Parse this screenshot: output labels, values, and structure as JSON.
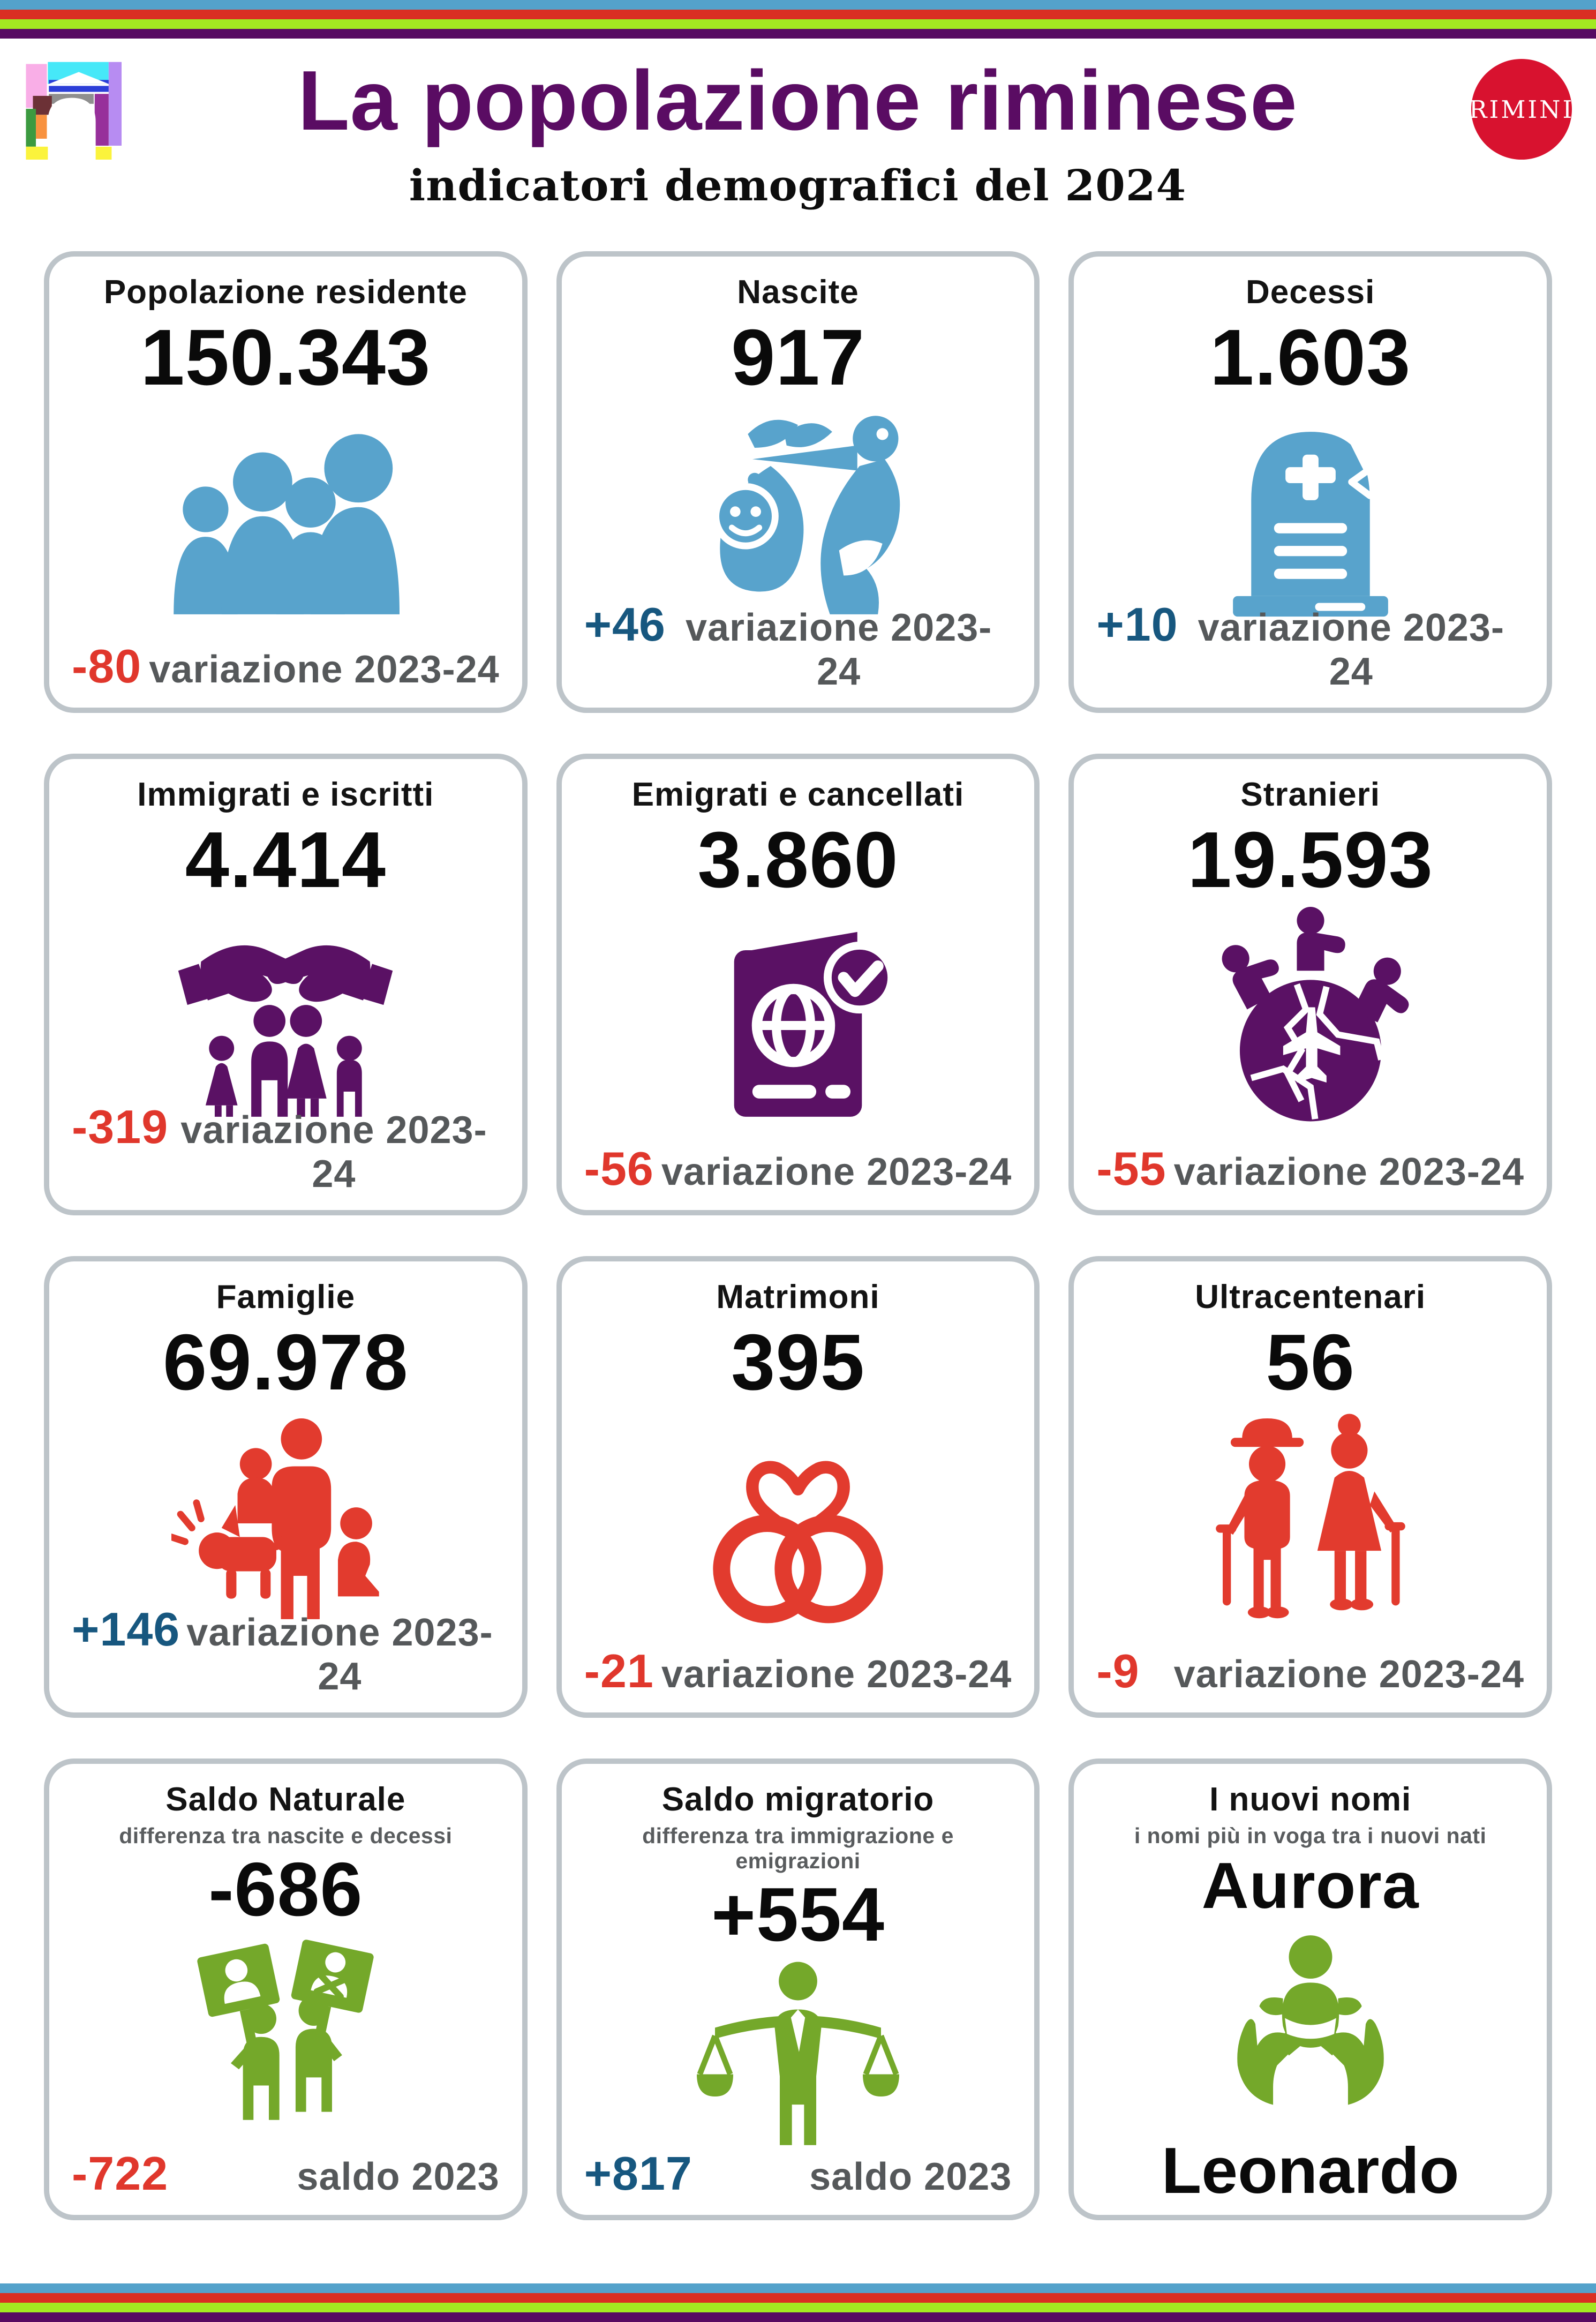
{
  "palette": {
    "stripes": [
      "#54A2CB",
      "#DA2F23",
      "#A3E921",
      "#570A62"
    ],
    "title_purple": "#5A0C63",
    "badge_red": "#D8122F",
    "card_border": "#BDC4C9",
    "label_gray": "#55585A",
    "negative": "#E0372C",
    "positive": "#17577F",
    "blue": "#58A3CC",
    "purple": "#5A1164",
    "red": "#E23B2E",
    "green": "#74A82A"
  },
  "header": {
    "title": "La popolazione riminese",
    "subtitle": "indicatori demografici del 2024",
    "badge": "RIMINI",
    "logo": "rimini-arch-logo"
  },
  "cards": [
    {
      "id": "popolazione-residente",
      "title": "Popolazione  residente",
      "value": "150.343",
      "icon": "population-icon",
      "accent": "blue",
      "delta": "-80",
      "delta_type": "negative",
      "footer_label": "variazione 2023-24"
    },
    {
      "id": "nascite",
      "title": "Nascite",
      "value": "917",
      "icon": "stork-baby-icon",
      "accent": "blue",
      "delta": "+46",
      "delta_type": "positive",
      "footer_label": "variazione 2023-24"
    },
    {
      "id": "decessi",
      "title": "Decessi",
      "value": "1.603",
      "icon": "tombstone-icon",
      "accent": "blue",
      "delta": "+10",
      "delta_type": "positive",
      "footer_label": "variazione 2023-24"
    },
    {
      "id": "immigrati-e-iscritti",
      "title": "Immigrati e iscritti",
      "value": "4.414",
      "icon": "hands-family-icon",
      "accent": "purple",
      "delta": "-319",
      "delta_type": "negative",
      "footer_label": "variazione 2023-24"
    },
    {
      "id": "emigrati-e-cancellati",
      "title": "Emigrati e cancellati",
      "value": "3.860",
      "icon": "passport-icon",
      "accent": "purple",
      "delta": "-56",
      "delta_type": "negative",
      "footer_label": "variazione 2023-24"
    },
    {
      "id": "stranieri",
      "title": "Stranieri",
      "value": "19.593",
      "icon": "globe-travel-icon",
      "accent": "purple",
      "delta": "-55",
      "delta_type": "negative",
      "footer_label": "variazione 2023-24"
    },
    {
      "id": "famiglie",
      "title": "Famiglie",
      "value": "69.978",
      "icon": "family-dog-icon",
      "accent": "red",
      "delta": "+146",
      "delta_type": "positive",
      "footer_label": "variazione 2023-24"
    },
    {
      "id": "matrimoni",
      "title": "Matrimoni",
      "value": "395",
      "icon": "wedding-rings-icon",
      "accent": "red",
      "delta": "-21",
      "delta_type": "negative",
      "footer_label": "variazione 2023-24"
    },
    {
      "id": "ultracentenari",
      "title": "Ultracentenari",
      "value": "56",
      "icon": "elderly-couple-icon",
      "accent": "red",
      "delta": "-9",
      "delta_type": "negative",
      "footer_label": "variazione 2023-24"
    },
    {
      "id": "saldo-naturale",
      "title": "Saldo Naturale",
      "subtitle": "differenza tra nascite e decessi",
      "value": "-686",
      "icon": "protest-signs-icon",
      "accent": "green",
      "delta": "-722",
      "delta_type": "negative",
      "footer_label": "saldo 2023"
    },
    {
      "id": "saldo-migratorio",
      "title": "Saldo migratorio",
      "subtitle": "differenza tra immigrazione  e emigrazioni",
      "value": "+554",
      "icon": "balance-scales-icon",
      "accent": "green",
      "delta": "+817",
      "delta_type": "positive",
      "footer_label": "saldo 2023"
    },
    {
      "id": "i-nuovi-nomi",
      "title": "I nuovi nomi",
      "subtitle": "i nomi più in voga tra i nuovi nati",
      "value": "Aurora",
      "value_secondary": "Leonardo",
      "icon": "hands-baby-icon",
      "accent": "green"
    }
  ],
  "chart_data": {
    "type": "table",
    "title": "La popolazione riminese",
    "subtitle": "indicatori demografici del 2024",
    "categories": [
      "Popolazione residente",
      "Nascite",
      "Decessi",
      "Immigrati e iscritti",
      "Emigrati e cancellati",
      "Stranieri",
      "Famiglie",
      "Matrimoni",
      "Ultracentenari",
      "Saldo Naturale",
      "Saldo migratorio",
      "I nuovi nomi"
    ],
    "values": [
      "150.343",
      "917",
      "1.603",
      "4.414",
      "3.860",
      "19.593",
      "69.978",
      "395",
      "56",
      "-686",
      "+554",
      "Aurora / Leonardo"
    ],
    "series": [
      {
        "name": "variazione 2023-24",
        "values": [
          "-80",
          "+46",
          "+10",
          "-319",
          "-56",
          "-55",
          "+146",
          "-21",
          "-9",
          null,
          null,
          null
        ]
      },
      {
        "name": "saldo 2023",
        "values": [
          null,
          null,
          null,
          null,
          null,
          null,
          null,
          null,
          null,
          "-722",
          "+817",
          null
        ]
      }
    ]
  }
}
